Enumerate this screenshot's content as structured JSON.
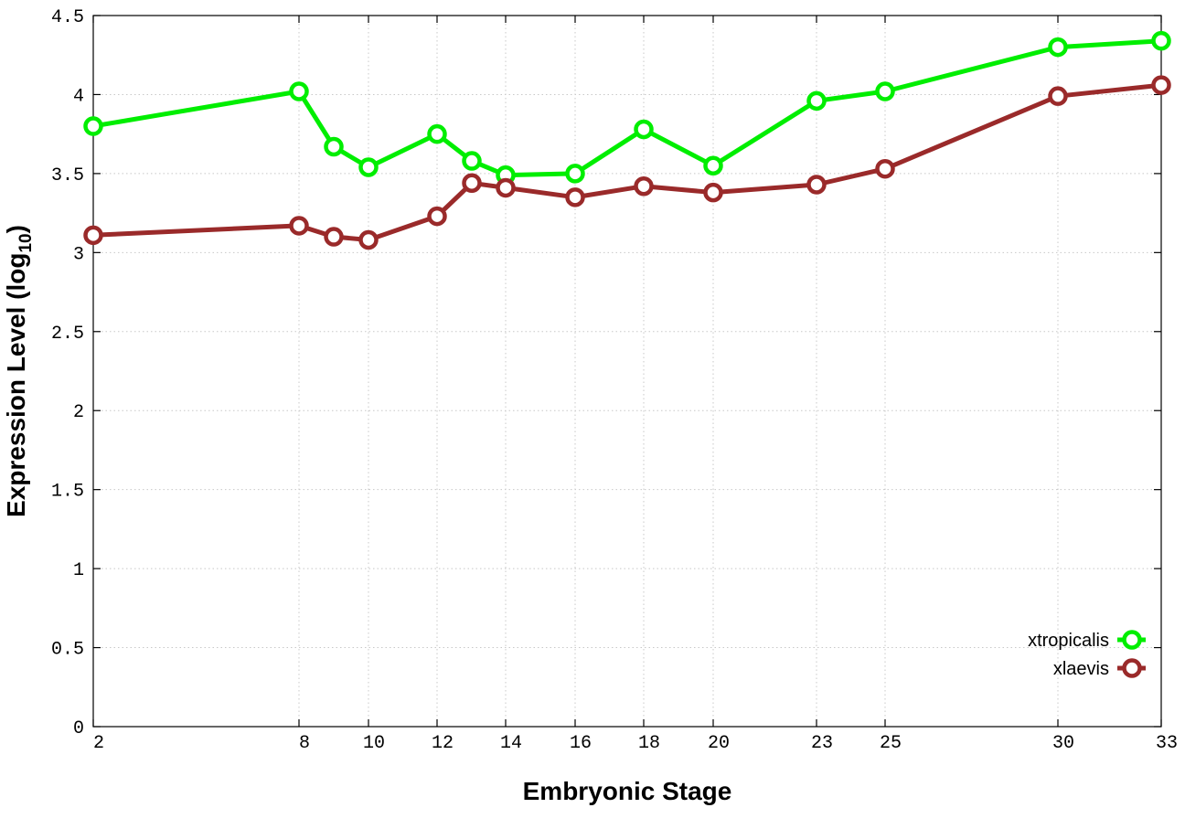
{
  "chart_data": {
    "type": "line",
    "xlabel": "Embryonic Stage",
    "ylabel_main": "Expression Level (log",
    "ylabel_sub": "10",
    "ylabel_close": ")",
    "x_scale": "categorical, non-uniform spacing",
    "x_ticks": [
      "2",
      "8",
      "10",
      "12",
      "14",
      "16",
      "18",
      "20",
      "23",
      "25",
      "30",
      "33"
    ],
    "y_ticks": [
      "0",
      "0.5",
      "1",
      "1.5",
      "2",
      "2.5",
      "3",
      "3.5",
      "4",
      "4.5"
    ],
    "ylim": [
      0,
      4.5
    ],
    "grid": true,
    "legend_position": "bottom-right",
    "x": [
      2,
      8,
      9,
      10,
      12,
      13,
      14,
      16,
      18,
      20,
      23,
      25,
      30,
      33
    ],
    "series": [
      {
        "name": "xtropicalis",
        "color": "#00ee00",
        "values": [
          3.8,
          4.02,
          3.67,
          3.54,
          3.75,
          3.58,
          3.49,
          3.5,
          3.78,
          3.55,
          3.96,
          4.02,
          4.3,
          4.34
        ]
      },
      {
        "name": "xlaevis",
        "color": "#9a2a2a",
        "values": [
          3.11,
          3.17,
          3.1,
          3.08,
          3.23,
          3.44,
          3.41,
          3.35,
          3.42,
          3.38,
          3.43,
          3.53,
          3.99,
          4.06
        ]
      }
    ]
  }
}
